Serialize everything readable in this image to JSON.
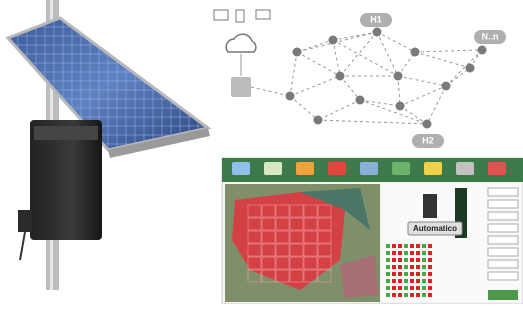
{
  "network": {
    "labels": [
      "H1",
      "N..n",
      "H2"
    ]
  },
  "software": {
    "mode_button": "Automatico"
  }
}
